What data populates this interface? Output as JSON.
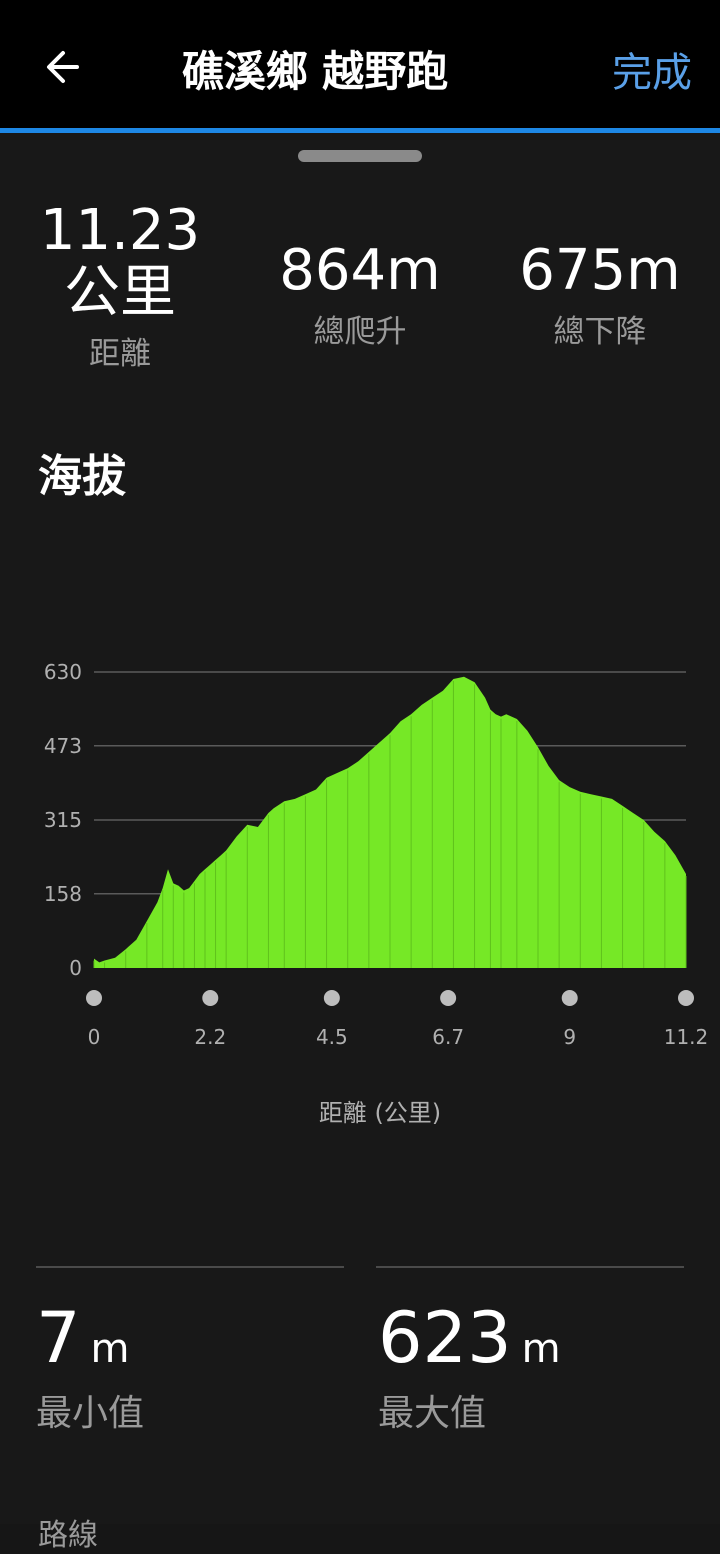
{
  "header": {
    "title": "礁溪鄉 越野跑",
    "done_label": "完成",
    "back_icon": "arrow-left-icon",
    "accent_color": "#1e88e5",
    "done_color": "#5aa0e8"
  },
  "stats": {
    "distance": {
      "value": "11.23",
      "unit": "公里",
      "label": "距離"
    },
    "ascent": {
      "value": "864m",
      "label": "總爬升"
    },
    "descent": {
      "value": "675m",
      "label": "總下降"
    }
  },
  "elevation": {
    "section_title": "海拔",
    "min": {
      "value": "7",
      "unit": "m",
      "label": "最小值"
    },
    "max": {
      "value": "623",
      "unit": "m",
      "label": "最大值"
    },
    "next_section_peek": "路線"
  },
  "chart_data": {
    "type": "area",
    "xlabel": "距離 (公里)",
    "ylabel": "",
    "x_ticks": [
      "0",
      "2.2",
      "4.5",
      "6.7",
      "9",
      "11.2"
    ],
    "y_ticks": [
      "630",
      "473",
      "315",
      "158",
      "0"
    ],
    "xlim": [
      0,
      11.2
    ],
    "ylim": [
      0,
      630
    ],
    "grid": true,
    "fill_color": "#76e826",
    "series": [
      {
        "x": [
          0,
          0.1,
          0.2,
          0.4,
          0.6,
          0.8,
          1.0,
          1.2,
          1.3,
          1.4,
          1.5,
          1.6,
          1.7,
          1.8,
          1.9,
          2.0,
          2.1,
          2.2,
          2.3,
          2.4,
          2.5,
          2.7,
          2.9,
          3.1,
          3.3,
          3.4,
          3.6,
          3.8,
          4.0,
          4.2,
          4.4,
          4.6,
          4.8,
          5.0,
          5.2,
          5.4,
          5.6,
          5.8,
          6.0,
          6.2,
          6.4,
          6.6,
          6.8,
          7.0,
          7.2,
          7.4,
          7.5,
          7.6,
          7.7,
          7.8,
          8.0,
          8.2,
          8.4,
          8.6,
          8.8,
          9.0,
          9.2,
          9.4,
          9.6,
          9.8,
          10.0,
          10.2,
          10.4,
          10.6,
          10.8,
          11.0,
          11.2
        ],
        "values": [
          20,
          12,
          16,
          22,
          40,
          60,
          100,
          140,
          170,
          210,
          180,
          175,
          165,
          170,
          185,
          200,
          210,
          220,
          230,
          240,
          250,
          280,
          305,
          300,
          330,
          340,
          355,
          360,
          370,
          380,
          405,
          415,
          425,
          440,
          460,
          480,
          500,
          525,
          540,
          560,
          575,
          590,
          615,
          620,
          608,
          575,
          550,
          540,
          535,
          540,
          530,
          505,
          470,
          430,
          400,
          385,
          375,
          370,
          365,
          360,
          345,
          330,
          315,
          290,
          270,
          240,
          200
        ]
      }
    ]
  }
}
